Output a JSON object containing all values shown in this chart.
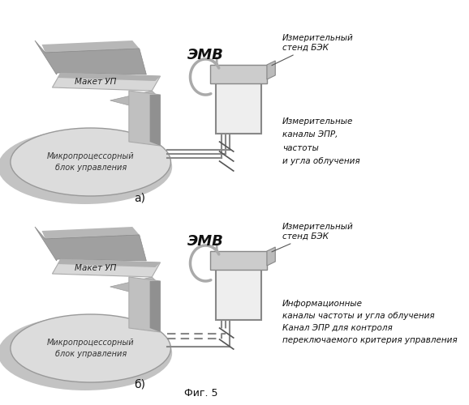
{
  "title": "Фиг. 5",
  "fig_a_label": "а)",
  "fig_b_label": "б)",
  "emv_label": "ЭМВ",
  "maket_label": "Макет УП",
  "micro_label": "Микропроцессорный\nблок управления",
  "stand_label_a": "Измерительный\nстенд БЭК",
  "channels_label_a": "Измерительные\nканалы ЭПР,\nчастоты\nи угла облучения",
  "stand_label_b": "Измерительный\nстенд БЭК",
  "info_channels_label_b": "Информационные\nканалы частоты и угла облучения",
  "epr_channel_label_b": "Канал ЭПР для контроля\nпереключаемого критерия управления",
  "bg_color": "#ffffff"
}
